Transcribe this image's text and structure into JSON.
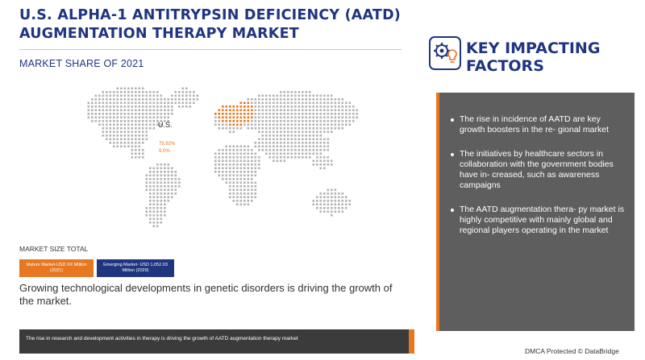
{
  "header": {
    "title_line1": "U.S. ALPHA-1 ANTITRYPSIN DEFICIENCY (AATD)",
    "title_line2": "AUGMENTATION THERAPY MARKET",
    "subtitle": "MARKET SHARE OF 2021"
  },
  "map": {
    "region_label": "U.S.",
    "share_primary": "75.92%",
    "share_secondary": "9.0%",
    "highlight_color": "#e87722",
    "dot_color": "#b3b3b3"
  },
  "market_size": {
    "label": "MARKET SIZE TOTAL",
    "mature": "Mature Market-USD XX Million (2021)",
    "emerging": "Emerging Market- USD 1,052.03 Million (2029)"
  },
  "growing_text": "Growing technological developments in genetic disorders is driving the growth of the market.",
  "banner_text": "The rise in research and development activities in therapy is driving the growth of AATD augmentation therapy market",
  "key_factors": {
    "title_line1": "KEY IMPACTING",
    "title_line2": "FACTORS",
    "icon": "gear-lightbulb-icon",
    "bullets": [
      "The rise in incidence of AATD are key growth boosters in the re- gional market",
      "The initiatives by healthcare sectors in collaboration with the government bodies have in- creased, such as awareness campaigns",
      "The AATD augmentation thera- py market is highly competitive with mainly global and regional players operating in the market"
    ]
  },
  "footer": {
    "dmca": "DMCA Protected © DataBridge"
  },
  "colors": {
    "brand_blue": "#1f3580",
    "accent_orange": "#e87722",
    "panel_gray": "#5e5e5e",
    "banner_dark": "#3b3b3b"
  }
}
